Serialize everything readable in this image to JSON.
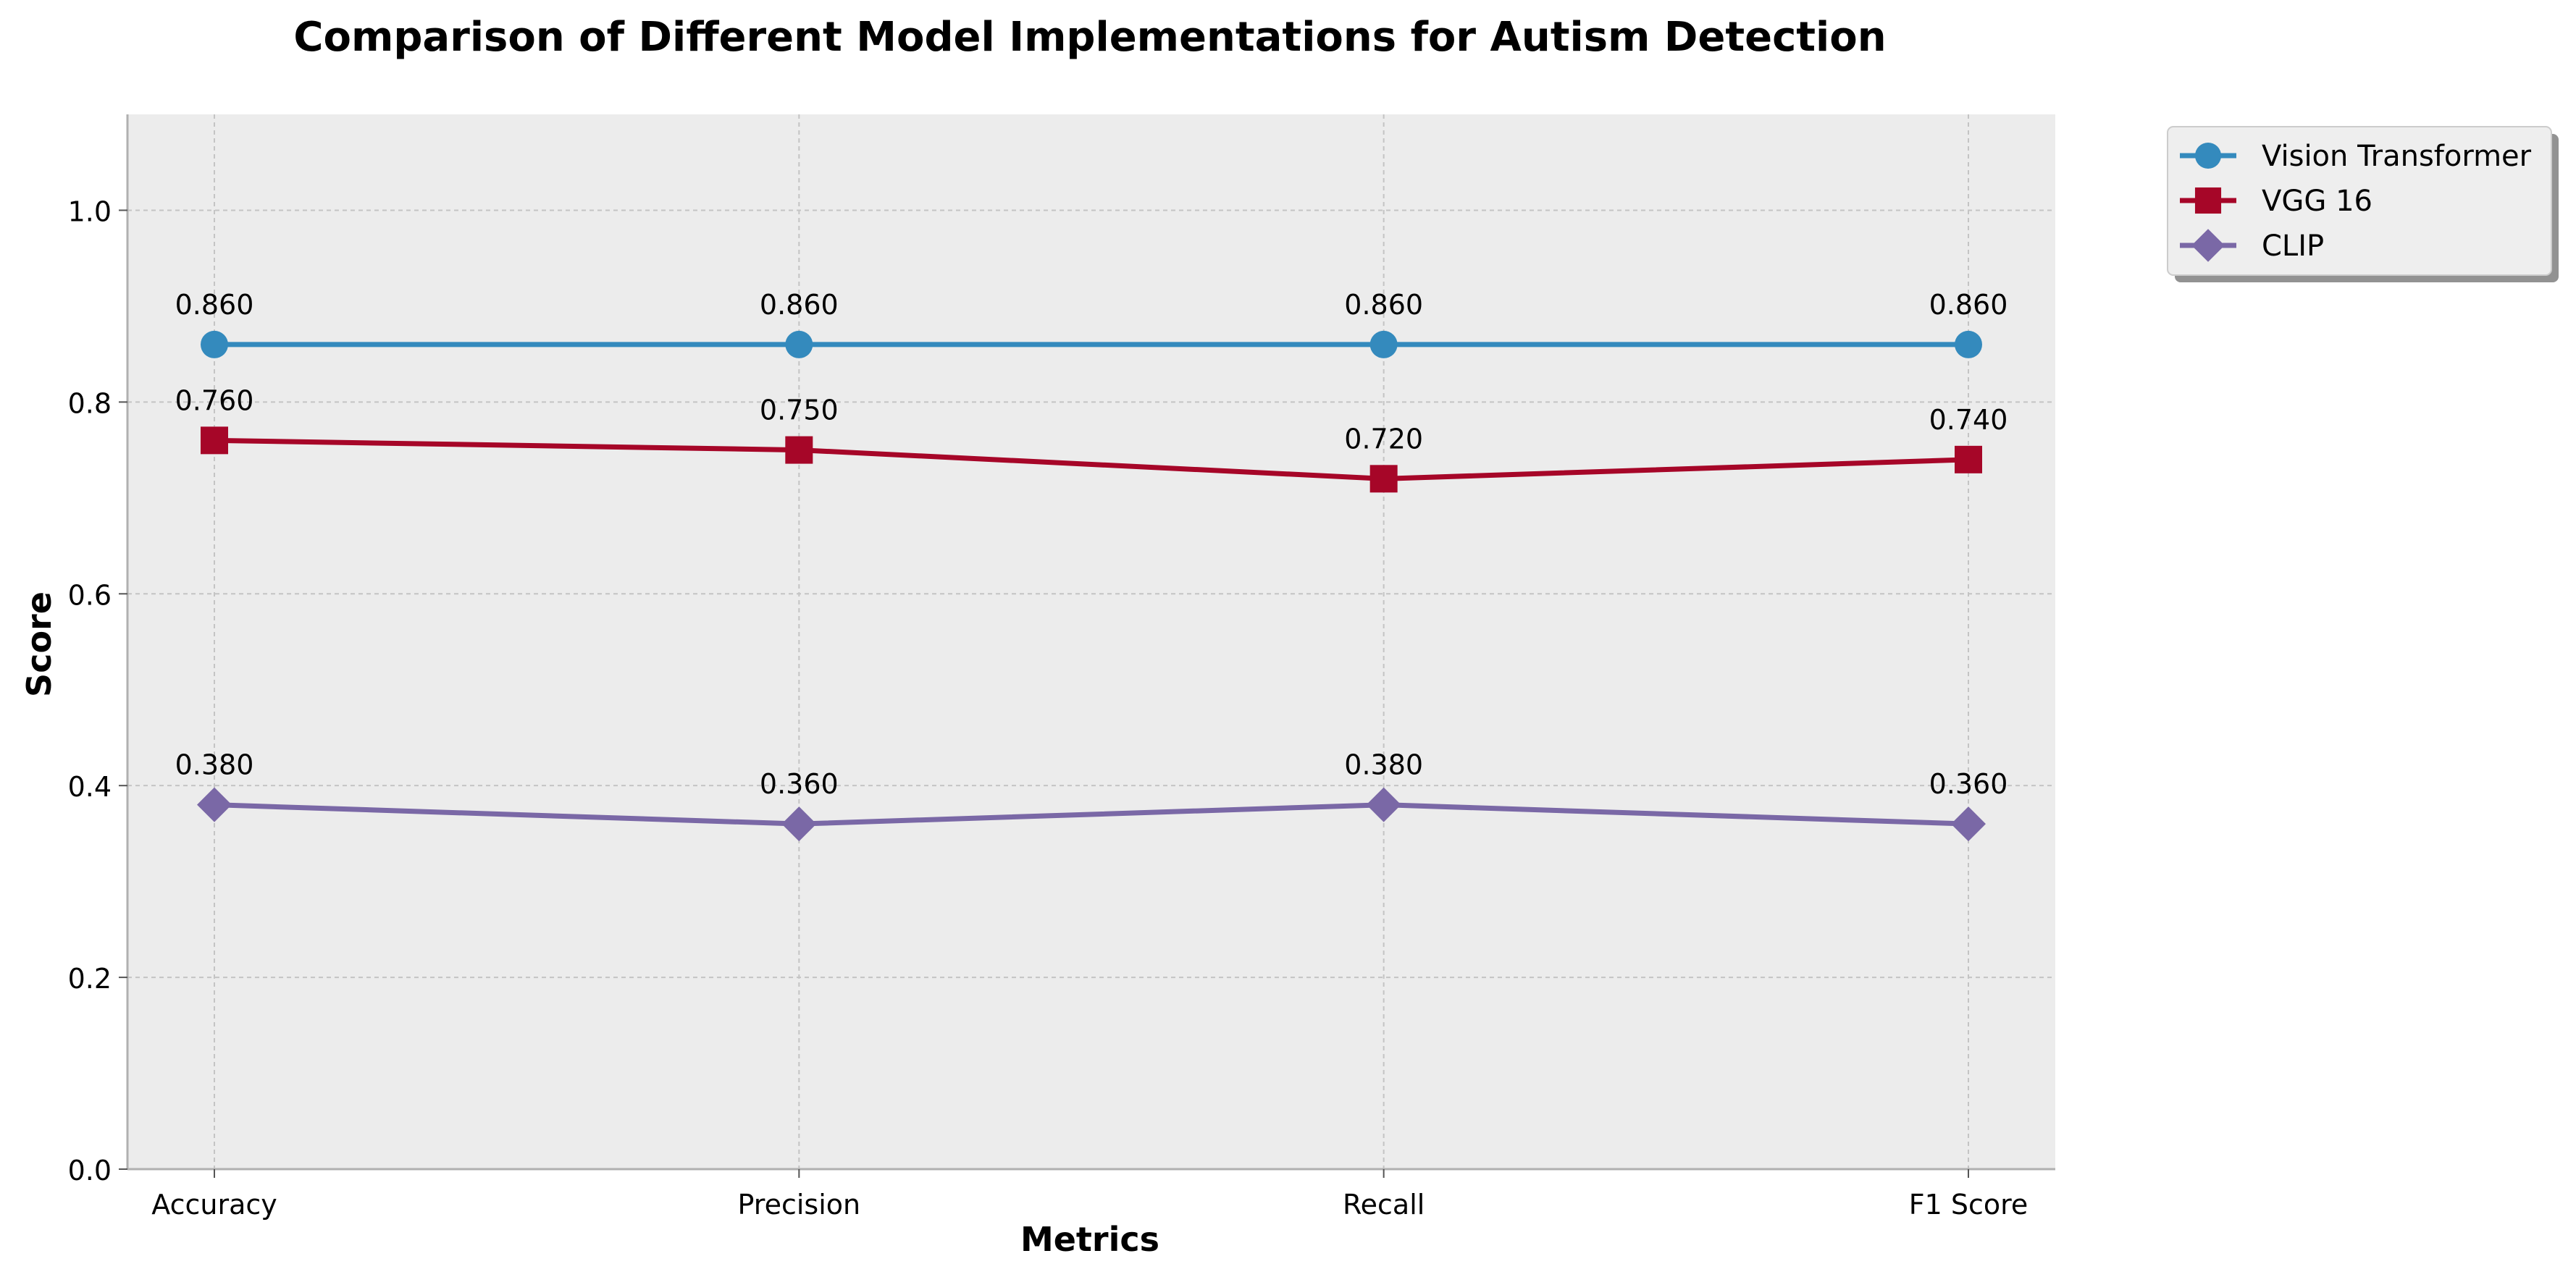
{
  "chart_data": {
    "type": "line",
    "title": "Comparison of Different Model Implementations for Autism Detection",
    "xlabel": "Metrics",
    "ylabel": "Score",
    "categories": [
      "Accuracy",
      "Precision",
      "Recall",
      "F1 Score"
    ],
    "ylim": [
      0,
      1.1
    ],
    "yticks": [
      "0.0",
      "0.2",
      "0.4",
      "0.6",
      "0.8",
      "1.0"
    ],
    "grid": true,
    "legend_position": "outside top-right",
    "series": [
      {
        "name": "Vision Transformer",
        "marker": "circle",
        "color": "#348ABD",
        "values": [
          0.86,
          0.86,
          0.86,
          0.86
        ],
        "labels": [
          "0.860",
          "0.860",
          "0.860",
          "0.860"
        ]
      },
      {
        "name": "VGG 16",
        "marker": "square",
        "color": "#A60628",
        "values": [
          0.76,
          0.75,
          0.72,
          0.74
        ],
        "labels": [
          "0.760",
          "0.750",
          "0.720",
          "0.740"
        ]
      },
      {
        "name": "CLIP",
        "marker": "diamond",
        "color": "#7A68A6",
        "values": [
          0.38,
          0.36,
          0.38,
          0.36
        ],
        "labels": [
          "0.380",
          "0.360",
          "0.380",
          "0.360"
        ]
      }
    ]
  }
}
